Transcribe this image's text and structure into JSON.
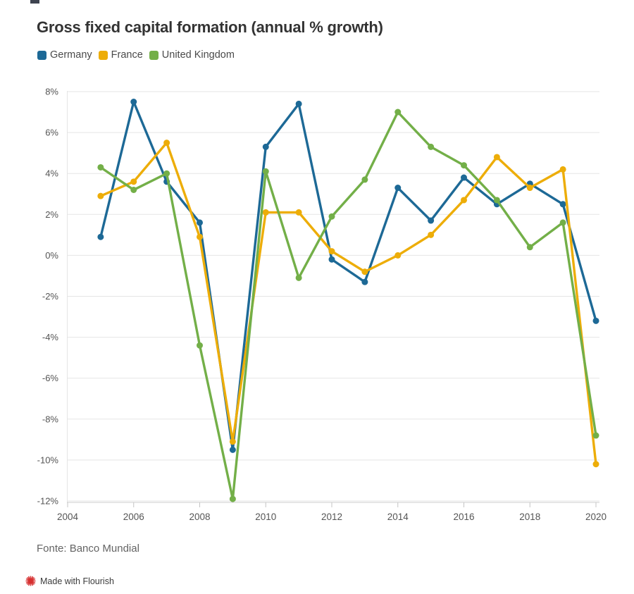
{
  "page": {
    "title": "Gross fixed capital formation (annual % growth)",
    "source_note": "Fonte: Banco Mundial",
    "credit": "Made with Flourish"
  },
  "colors": {
    "germany": "#1D6996",
    "france": "#EDAD08",
    "united_kingdom": "#73AF48",
    "grid": "#E5E5E5",
    "axis_line": "#CCCCCC",
    "tick": "#C4C4C4",
    "axis_text": "#555555",
    "title_text": "#333333",
    "source_text": "#646464",
    "credit_text": "#3B3B3B",
    "credit_icon": "#D62F2F"
  },
  "chart_data": {
    "type": "line",
    "title": "Gross fixed capital formation (annual % growth)",
    "xlabel": "",
    "ylabel": "",
    "x": [
      2005,
      2006,
      2007,
      2008,
      2009,
      2010,
      2011,
      2012,
      2013,
      2014,
      2015,
      2016,
      2017,
      2018,
      2019,
      2020
    ],
    "series": [
      {
        "name": "Germany",
        "color": "#1D6996",
        "values": [
          0.9,
          7.5,
          3.6,
          1.6,
          -9.5,
          5.3,
          7.4,
          -0.2,
          -1.3,
          3.3,
          1.7,
          3.8,
          2.5,
          3.5,
          2.5,
          -3.2
        ]
      },
      {
        "name": "France",
        "color": "#EDAD08",
        "values": [
          2.9,
          3.6,
          5.5,
          0.9,
          -9.1,
          2.1,
          2.1,
          0.2,
          -0.8,
          0.0,
          1.0,
          2.7,
          4.8,
          3.3,
          4.2,
          -10.2
        ]
      },
      {
        "name": "United Kingdom",
        "color": "#73AF48",
        "values": [
          4.3,
          3.2,
          4.0,
          -4.4,
          -11.9,
          4.1,
          -1.1,
          1.9,
          3.7,
          7.0,
          5.3,
          4.4,
          2.7,
          0.4,
          1.6,
          -8.8
        ]
      }
    ],
    "xlim": [
      2004,
      2020
    ],
    "ylim": [
      -12,
      8
    ],
    "x_ticks": [
      2004,
      2006,
      2008,
      2010,
      2012,
      2014,
      2016,
      2018,
      2020
    ],
    "y_ticks": [
      8,
      6,
      4,
      2,
      0,
      -2,
      -4,
      -6,
      -8,
      -10,
      -12
    ],
    "y_tick_suffix": "%",
    "grid": "horizontal",
    "legend_position": "top-left",
    "marker": "circle"
  }
}
